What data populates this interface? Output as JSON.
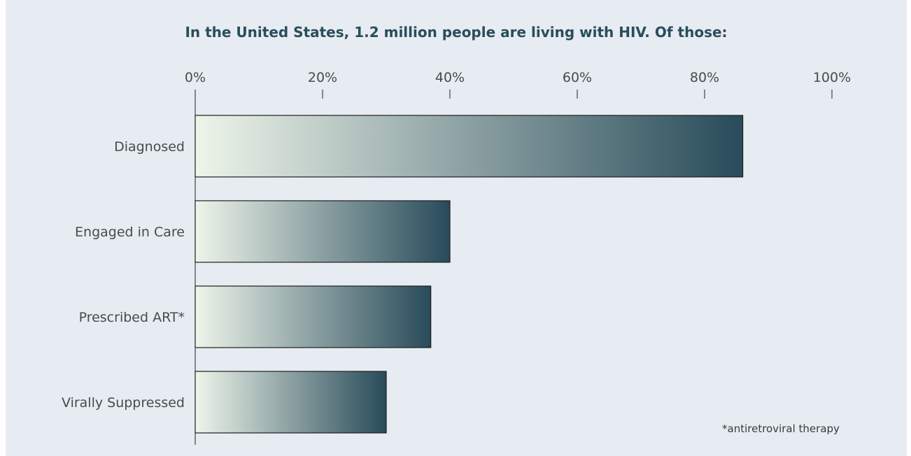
{
  "chart_data": {
    "type": "bar",
    "orientation": "horizontal",
    "title": "In the United States, 1.2 million people are living with HIV. Of those:",
    "categories": [
      "Diagnosed",
      "Engaged in Care",
      "Prescribed ART*",
      "Virally Suppressed"
    ],
    "values": [
      86,
      40,
      37,
      30
    ],
    "xlim": [
      0,
      100
    ],
    "x_ticks": [
      "0%",
      "20%",
      "40%",
      "60%",
      "80%",
      "100%"
    ],
    "x_axis_position": "top",
    "grid": false,
    "footnote": "*antiretroviral therapy",
    "colors": {
      "background": "#e6ecf2",
      "gradient_start": "#eef5ea",
      "gradient_end": "#284b5a",
      "title": "#2a4d5c"
    }
  }
}
